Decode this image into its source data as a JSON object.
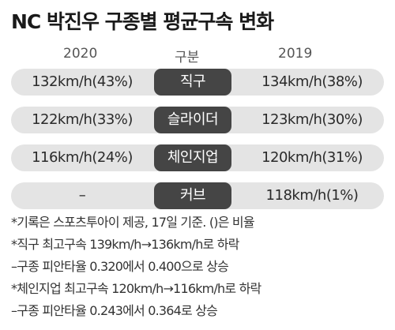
{
  "title": "NC 박진우 구종별 평균구속 변화",
  "headers": {
    "left": "2020",
    "middle": "구분",
    "right": "2019"
  },
  "chart_data": {
    "type": "table",
    "title": "NC 박진우 구종별 평균구속 변화",
    "columns": [
      "2020",
      "구분",
      "2019"
    ],
    "rows": [
      {
        "pitch": "직구",
        "v2020": "132km/h(43%)",
        "v2019": "134km/h(38%)"
      },
      {
        "pitch": "슬라이더",
        "v2020": "122km/h(33%)",
        "v2019": "123km/h(30%)"
      },
      {
        "pitch": "체인지업",
        "v2020": "116km/h(24%)",
        "v2019": "120km/h(31%)"
      },
      {
        "pitch": "커브",
        "v2020": "–",
        "v2019": "118km/h(1%)"
      }
    ]
  },
  "notes": [
    "*기록은 스포츠투아이 제공, 17일 기준. ()은 비율",
    "*직구 최고구속 139km/h→136km/h로 하락",
    "–구종 피안타율 0.320에서 0.400으로 상승",
    "*체인지업 최고구속 120km/h→116km/h로 하락",
    "–구종 피안타율 0.243에서 0.364로 상승"
  ],
  "colors": {
    "row_bg": "#e4e4e4",
    "pill_bg": "#454545",
    "pill_text": "#ffffff"
  }
}
